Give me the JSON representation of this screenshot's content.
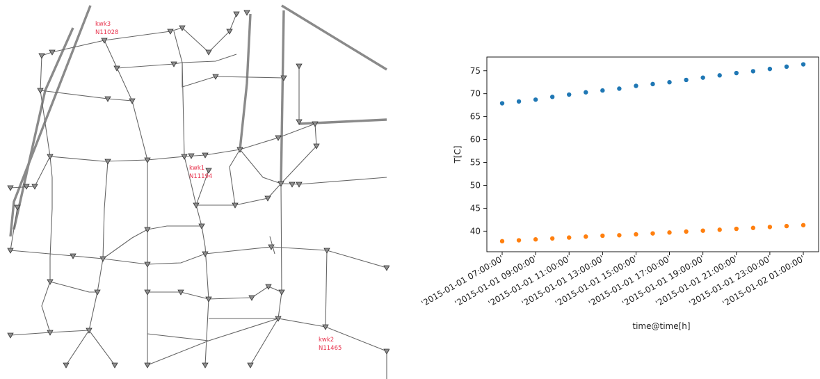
{
  "network": {
    "plants": [
      {
        "name": "kwk3",
        "node": "N11028"
      },
      {
        "name": "kwk1",
        "node": "N11194"
      },
      {
        "name": "kwk2",
        "node": "N11465"
      }
    ]
  },
  "chart_data": {
    "type": "scatter",
    "title": "",
    "xlabel": "time@time[h]",
    "ylabel": "T[C]",
    "x": [
      "2015-01-01 07:00:00",
      "2015-01-01 08:00:00",
      "2015-01-01 09:00:00",
      "2015-01-01 10:00:00",
      "2015-01-01 11:00:00",
      "2015-01-01 12:00:00",
      "2015-01-01 13:00:00",
      "2015-01-01 14:00:00",
      "2015-01-01 15:00:00",
      "2015-01-01 16:00:00",
      "2015-01-01 17:00:00",
      "2015-01-01 18:00:00",
      "2015-01-01 19:00:00",
      "2015-01-01 20:00:00",
      "2015-01-01 21:00:00",
      "2015-01-01 22:00:00",
      "2015-01-01 23:00:00",
      "2015-01-02 00:00:00",
      "2015-01-02 01:00:00"
    ],
    "x_tick_labels": [
      "'2015-01-01 07:00:00'",
      "'2015-01-01 09:00:00'",
      "'2015-01-01 11:00:00'",
      "'2015-01-01 13:00:00'",
      "'2015-01-01 15:00:00'",
      "'2015-01-01 17:00:00'",
      "'2015-01-01 19:00:00'",
      "'2015-01-01 21:00:00'",
      "'2015-01-01 23:00:00'",
      "'2015-01-02 01:00:00'"
    ],
    "y_ticks": [
      40,
      45,
      50,
      55,
      60,
      65,
      70,
      75
    ],
    "ylim": [
      35.5,
      78
    ],
    "grid": false,
    "series": [
      {
        "values": [
          67.9,
          68.3,
          68.7,
          69.3,
          69.8,
          70.3,
          70.7,
          71.1,
          71.7,
          72.1,
          72.5,
          73.0,
          73.5,
          74.0,
          74.5,
          74.9,
          75.4,
          75.9,
          76.4
        ],
        "color": "#1f77b4"
      },
      {
        "values": [
          37.8,
          38.0,
          38.2,
          38.4,
          38.6,
          38.8,
          39.0,
          39.1,
          39.3,
          39.5,
          39.7,
          39.9,
          40.1,
          40.3,
          40.5,
          40.7,
          40.9,
          41.1,
          41.3
        ],
        "color": "#ff7f0e"
      }
    ]
  }
}
